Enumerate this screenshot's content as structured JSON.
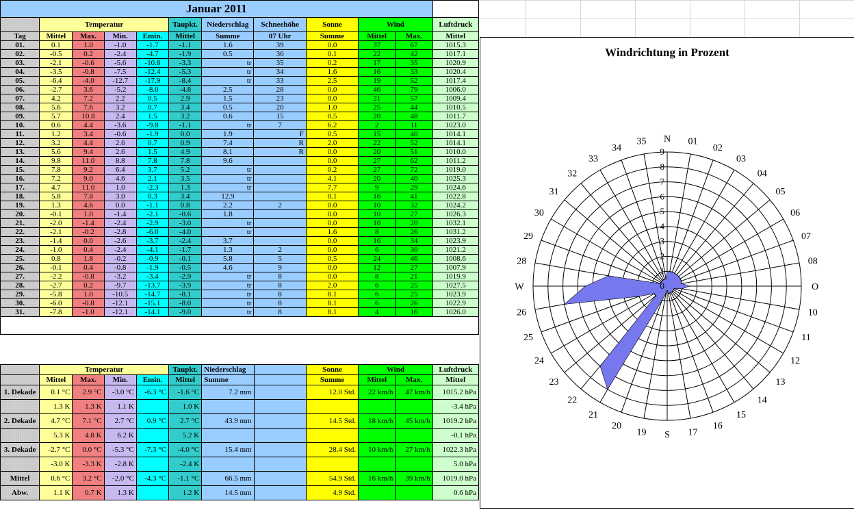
{
  "title": "Januar 2011",
  "headers": {
    "temperatur": "Temperatur",
    "taupkt": "Taupkt.",
    "niederschlag": "Niederschlag",
    "schneehoehe": "Schneehöhe",
    "sonne": "Sonne",
    "wind": "Wind",
    "luftdruck": "Luftdruck",
    "tag": "Tag",
    "mittel": "Mittel",
    "max": "Max.",
    "min": "Min.",
    "emin": "Emin.",
    "summe": "Summe",
    "uhr": "07 Uhr"
  },
  "days": [
    [
      "01.",
      "0.1",
      "1.0",
      "-1.0",
      "-1.7",
      "-1.1",
      "1.6",
      "39",
      "0.0",
      "37",
      "67",
      "1015.3"
    ],
    [
      "02.",
      "-0.5",
      "0.2",
      "-2.4",
      "-4.7",
      "-1.9",
      "0.5",
      "36",
      "0.1",
      "22",
      "42",
      "1017.1"
    ],
    [
      "03.",
      "-2.1",
      "-0.6",
      "-5.6",
      "-10.8",
      "-3.3",
      "tr",
      "35",
      "0.2",
      "17",
      "35",
      "1020.9"
    ],
    [
      "04.",
      "-3.5",
      "-0.8",
      "-7.5",
      "-12.4",
      "-5.3",
      "tr",
      "34",
      "1.6",
      "16",
      "33",
      "1020.4"
    ],
    [
      "05.",
      "-6.4",
      "-4.0",
      "-12.7",
      "-17.9",
      "-8.4",
      "tr",
      "33",
      "2.5",
      "19",
      "52",
      "1017.4"
    ],
    [
      "06.",
      "-2.7",
      "3.6",
      "-5.2",
      "-8.0",
      "-4.8",
      "2.5",
      "28",
      "0.0",
      "46",
      "79",
      "1006.0"
    ],
    [
      "07.",
      "4.2",
      "7.2",
      "2.2",
      "0.5",
      "2.9",
      "1.5",
      "23",
      "0.0",
      "21",
      "57",
      "1009.4"
    ],
    [
      "08.",
      "5.6",
      "7.6",
      "3.2",
      "0.7",
      "3.4",
      "0.5",
      "20",
      "1.0",
      "25",
      "44",
      "1010.5"
    ],
    [
      "09.",
      "5.7",
      "10.8",
      "2.4",
      "1.5",
      "3.2",
      "0.6",
      "15",
      "0.5",
      "20",
      "48",
      "1011.7"
    ],
    [
      "10.",
      "0.6",
      "4.4",
      "-3.6",
      "-9.8",
      "-1.1",
      "tr",
      "7",
      "6.2",
      "2",
      "11",
      "1023.0"
    ],
    [
      "11.",
      "1.2",
      "3.4",
      "-0.6",
      "-1.9",
      "0.0",
      "1.9",
      "F",
      "0.5",
      "15",
      "40",
      "1014.1"
    ],
    [
      "12.",
      "3.2",
      "4.4",
      "2.6",
      "0.7",
      "0.9",
      "7.4",
      "R",
      "2.0",
      "22",
      "52",
      "1014.1"
    ],
    [
      "13.",
      "5.6",
      "9.4",
      "2.6",
      "1.5",
      "4.9",
      "8.1",
      "R",
      "0.0",
      "20",
      "51",
      "1010.0"
    ],
    [
      "14.",
      "9.8",
      "11.0",
      "8.8",
      "7.8",
      "7.8",
      "9.6",
      "",
      "0.0",
      "27",
      "62",
      "1011.2"
    ],
    [
      "15.",
      "7.8",
      "9.2",
      "6.4",
      "3.7",
      "5.2",
      "tr",
      "",
      "0.2",
      "27",
      "72",
      "1019.0"
    ],
    [
      "16.",
      "7.2",
      "9.0",
      "4.6",
      "2.1",
      "3.5",
      "tr",
      "",
      "4.1",
      "20",
      "40",
      "1025.3"
    ],
    [
      "17.",
      "4.7",
      "11.0",
      "1.0",
      "-2.3",
      "1.3",
      "tr",
      "",
      "7.7",
      "9",
      "29",
      "1024.6"
    ],
    [
      "18.",
      "5.8",
      "7.8",
      "3.0",
      "0.3",
      "3.4",
      "12.9",
      "",
      "0.1",
      "16",
      "41",
      "1022.8"
    ],
    [
      "19.",
      "1.3",
      "4.6",
      "0.0",
      "-1.1",
      "0.8",
      "2.2",
      "2",
      "0.0",
      "10",
      "32",
      "1024.2"
    ],
    [
      "20.",
      "-0.1",
      "1.0",
      "-1.4",
      "-2.1",
      "-0.6",
      "1.8",
      "",
      "0.0",
      "10",
      "27",
      "1026.3"
    ],
    [
      "21.",
      "-2.0",
      "-1.4",
      "-2.4",
      "-2.9",
      "-3.0",
      "tr",
      "",
      "0.0",
      "10",
      "20",
      "1032.1"
    ],
    [
      "22.",
      "-2.1",
      "-0.2",
      "-2.8",
      "-6.0",
      "-4.0",
      "tr",
      "",
      "1.6",
      "8",
      "26",
      "1031.2"
    ],
    [
      "23.",
      "-1.4",
      "0.0",
      "-2.6",
      "-3.7",
      "-2.4",
      "3.7",
      "",
      "0.0",
      "16",
      "34",
      "1023.9"
    ],
    [
      "24.",
      "-1.0",
      "0.4",
      "-2.4",
      "-4.1",
      "-1.7",
      "1.3",
      "2",
      "0.0",
      "6",
      "30",
      "1021.2"
    ],
    [
      "25.",
      "0.8",
      "1.8",
      "-0.2",
      "-0.9",
      "-0.1",
      "5.8",
      "5",
      "0.5",
      "24",
      "46",
      "1008.6"
    ],
    [
      "26.",
      "-0.1",
      "0.4",
      "-0.8",
      "-1.9",
      "-0.5",
      "4.6",
      "9",
      "0.0",
      "12",
      "27",
      "1007.9"
    ],
    [
      "27.",
      "-2.2",
      "-0.8",
      "-3.2",
      "-3.4",
      "-2.9",
      "tr",
      "8",
      "0.0",
      "8",
      "21",
      "1019.9"
    ],
    [
      "28.",
      "-2.7",
      "0.2",
      "-9.7",
      "-13.7",
      "-3.9",
      "tr",
      "8",
      "2.0",
      "6",
      "25",
      "1027.5"
    ],
    [
      "29.",
      "-5.8",
      "1.0",
      "-10.5",
      "-14.7",
      "-8.1",
      "tr",
      "8",
      "8.1",
      "6",
      "25",
      "1023.9"
    ],
    [
      "30.",
      "-6.0",
      "-0.8",
      "-12.1",
      "-15.1",
      "-8.0",
      "tr",
      "8",
      "8.1",
      "6",
      "26",
      "1022.9"
    ],
    [
      "31.",
      "-7.8",
      "-1.0",
      "-12.1",
      "-14.1",
      "-9.0",
      "tr",
      "8",
      "8.1",
      "4",
      "16",
      "1026.0"
    ]
  ],
  "summary": {
    "sonne": "Sonne",
    "wind": "Wind",
    "rows": [
      {
        "label": "1. Dekade",
        "mittel": "0.1 °C",
        "max": "2.9 °C",
        "min": "-3.0 °C",
        "emin": "-6.3 °C",
        "taupkt": "-1.6 °C",
        "nieder": "7.2 mm",
        "sonne": "12.0 Std.",
        "wmittel": "22 km/h",
        "wmax": "47 km/h",
        "luft": "1015.2 hPa"
      },
      {
        "label": "",
        "mittel": "1.3  K",
        "max": "1.3  K",
        "min": "1.1  K",
        "emin": "",
        "taupkt": "1.0  K",
        "nieder": "",
        "sonne": "",
        "wmittel": "",
        "wmax": "",
        "luft": "-3.4 hPa"
      },
      {
        "label": "2. Dekade",
        "mittel": "4.7 °C",
        "max": "7.1 °C",
        "min": "2.7 °C",
        "emin": "0.9 °C",
        "taupkt": "2.7 °C",
        "nieder": "43.9 mm",
        "sonne": "14.5 Std.",
        "wmittel": "18 km/h",
        "wmax": "45 km/h",
        "luft": "1019.2 hPa"
      },
      {
        "label": "",
        "mittel": "5.3  K",
        "max": "4.8  K",
        "min": "6.2  K",
        "emin": "",
        "taupkt": "5.2  K",
        "nieder": "",
        "sonne": "",
        "wmittel": "",
        "wmax": "",
        "luft": "-0.1 hPa"
      },
      {
        "label": "3. Dekade",
        "mittel": "-2.7 °C",
        "max": "0.0 °C",
        "min": "-5.3 °C",
        "emin": "-7.3 °C",
        "taupkt": "-4.0 °C",
        "nieder": "15.4 mm",
        "sonne": "28.4 Std.",
        "wmittel": "10 km/h",
        "wmax": "27 km/h",
        "luft": "1022.3 hPa"
      },
      {
        "label": "",
        "mittel": "-3.0  K",
        "max": "-3.3  K",
        "min": "-2.8  K",
        "emin": "",
        "taupkt": "-2.4  K",
        "nieder": "",
        "sonne": "",
        "wmittel": "",
        "wmax": "",
        "luft": "5.0 hPa"
      },
      {
        "label": "Mittel",
        "mittel": "0.6 °C",
        "max": "3.2 °C",
        "min": "-2.0 °C",
        "emin": "-4.3 °C",
        "taupkt": "-1.1 °C",
        "nieder": "66.5 mm",
        "sonne": "54.9 Std.",
        "wmittel": "16 km/h",
        "wmax": "39 km/h",
        "luft": "1019.0 hPa"
      },
      {
        "label": "Abw.",
        "mittel": "1.1  K",
        "max": "0.7  K",
        "min": "1.3  K",
        "emin": "",
        "taupkt": "1.2  K",
        "nieder": "14.5 mm",
        "sonne": "4.9 Std.",
        "wmittel": "",
        "wmax": "",
        "luft": "0.6 hPa"
      }
    ]
  },
  "chart_data": {
    "type": "radar",
    "title": "Windrichtung in Prozent",
    "categories": [
      "N",
      "01",
      "02",
      "03",
      "04",
      "05",
      "06",
      "07",
      "08",
      "O",
      "10",
      "11",
      "12",
      "13",
      "14",
      "15",
      "16",
      "17",
      "S",
      "19",
      "20",
      "21",
      "22",
      "23",
      "24",
      "25",
      "26",
      "W",
      "28",
      "29",
      "30",
      "31",
      "32",
      "33",
      "34",
      "35"
    ],
    "axis_ticks": [
      "0",
      "1",
      "2",
      "3",
      "4",
      "5",
      "6",
      "7",
      "8",
      "9"
    ],
    "rlim": [
      0,
      9
    ],
    "series": [
      {
        "values": [
          1.0,
          1.0,
          1.0,
          1.0,
          1.0,
          1.0,
          1.0,
          1.0,
          1.0,
          1.5,
          1.0,
          0.5,
          0.5,
          0.5,
          0.5,
          0.5,
          0.5,
          0.5,
          0.3,
          0.5,
          1.0,
          8.0,
          7.0,
          1.0,
          1.0,
          2.0,
          7.0,
          5.5,
          4.0,
          0.5,
          0.5,
          0.5,
          0.5,
          0.5,
          0.5,
          0.5
        ],
        "color": "#7777ee"
      }
    ]
  }
}
